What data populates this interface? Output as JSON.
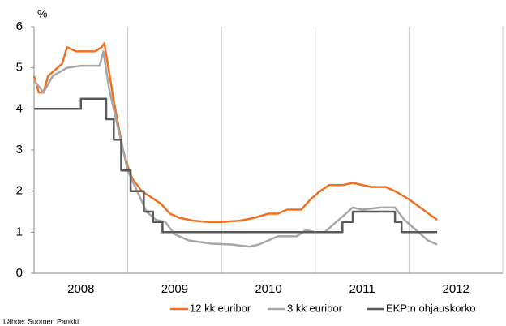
{
  "chart_data": {
    "type": "line",
    "ylabel": "%",
    "source": "Lähde: Suomen Pankki",
    "xlim": [
      2008,
      2013
    ],
    "xticks": [
      2008,
      2009,
      2010,
      2011,
      2012
    ],
    "ylim": [
      0,
      6
    ],
    "yticks": [
      0,
      1,
      2,
      3,
      4,
      5,
      6
    ],
    "grid": "x",
    "legend": "bottom-right",
    "series": [
      {
        "name": "12 kk euribor",
        "color": "#f07020",
        "x": [
          2008.0,
          2008.05,
          2008.1,
          2008.15,
          2008.2,
          2008.3,
          2008.35,
          2008.45,
          2008.55,
          2008.65,
          2008.72,
          2008.75,
          2008.8,
          2008.85,
          2008.9,
          2008.95,
          2009.0,
          2009.05,
          2009.15,
          2009.25,
          2009.35,
          2009.45,
          2009.55,
          2009.7,
          2009.85,
          2010.0,
          2010.2,
          2010.35,
          2010.5,
          2010.6,
          2010.7,
          2010.85,
          2010.95,
          2011.05,
          2011.15,
          2011.3,
          2011.4,
          2011.5,
          2011.6,
          2011.75,
          2011.85,
          2012.0,
          2012.15,
          2012.3
        ],
        "values": [
          4.8,
          4.4,
          4.4,
          4.8,
          4.9,
          5.1,
          5.5,
          5.4,
          5.4,
          5.4,
          5.5,
          5.6,
          4.9,
          4.2,
          3.6,
          3.0,
          2.6,
          2.3,
          2.0,
          1.85,
          1.7,
          1.45,
          1.35,
          1.28,
          1.25,
          1.25,
          1.28,
          1.35,
          1.45,
          1.45,
          1.55,
          1.55,
          1.8,
          2.0,
          2.15,
          2.15,
          2.2,
          2.15,
          2.1,
          2.1,
          2.0,
          1.8,
          1.55,
          1.3
        ]
      },
      {
        "name": "3 kk euribor",
        "color": "#a6a6a6",
        "x": [
          2008.0,
          2008.1,
          2008.2,
          2008.35,
          2008.5,
          2008.7,
          2008.74,
          2008.8,
          2008.9,
          2009.0,
          2009.1,
          2009.2,
          2009.3,
          2009.4,
          2009.5,
          2009.65,
          2009.9,
          2010.1,
          2010.3,
          2010.4,
          2010.5,
          2010.6,
          2010.8,
          2010.9,
          2011.0,
          2011.1,
          2011.2,
          2011.3,
          2011.4,
          2011.5,
          2011.7,
          2011.85,
          2011.95,
          2012.1,
          2012.2,
          2012.3
        ],
        "values": [
          4.7,
          4.4,
          4.8,
          5.0,
          5.05,
          5.05,
          5.4,
          4.5,
          3.5,
          2.5,
          2.0,
          1.5,
          1.3,
          1.25,
          0.95,
          0.8,
          0.72,
          0.7,
          0.65,
          0.7,
          0.8,
          0.9,
          0.9,
          1.05,
          1.0,
          1.0,
          1.2,
          1.4,
          1.6,
          1.55,
          1.6,
          1.6,
          1.3,
          1.0,
          0.8,
          0.7
        ]
      },
      {
        "name": "EKP:n ohjauskorko",
        "color": "#595959",
        "x": [
          2008.0,
          2008.5,
          2008.5,
          2008.77,
          2008.77,
          2008.85,
          2008.85,
          2008.93,
          2008.93,
          2009.03,
          2009.03,
          2009.17,
          2009.17,
          2009.27,
          2009.27,
          2009.37,
          2009.37,
          2011.29,
          2011.29,
          2011.4,
          2011.4,
          2011.85,
          2011.85,
          2011.92,
          2011.92,
          2012.3
        ],
        "values": [
          4.0,
          4.0,
          4.25,
          4.25,
          3.75,
          3.75,
          3.25,
          3.25,
          2.5,
          2.5,
          2.0,
          2.0,
          1.5,
          1.5,
          1.25,
          1.25,
          1.0,
          1.0,
          1.25,
          1.25,
          1.5,
          1.5,
          1.25,
          1.25,
          1.0,
          1.0
        ]
      }
    ]
  }
}
